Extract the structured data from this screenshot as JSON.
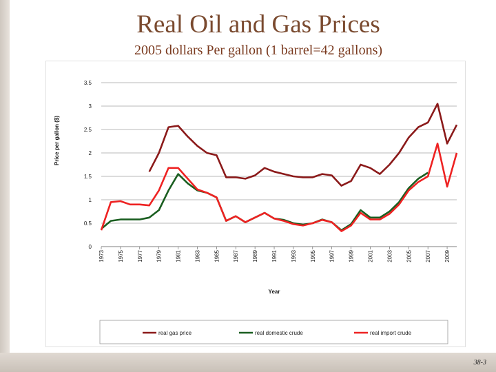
{
  "slide": {
    "title": "Real Oil and Gas Prices",
    "subtitle": "2005 dollars Per gallon (1 barrel=42 gallons)",
    "slide_number": "38-3"
  },
  "colors": {
    "title": "#7a4a2f",
    "gas": "#8b1a1a",
    "domestic": "#1a5e20",
    "import": "#ee2222"
  },
  "chart_data": {
    "type": "line",
    "xlabel": "Year",
    "ylabel": "Price per gallon ($)",
    "ylim": [
      0,
      3.5
    ],
    "yticks": [
      0,
      0.5,
      1,
      1.5,
      2,
      2.5,
      3,
      3.5
    ],
    "ytick_labels": [
      "0",
      "0.5",
      "1",
      "1.5",
      "2",
      "2.5",
      "3",
      "3.5"
    ],
    "xlim": [
      1973,
      2010
    ],
    "xticks": [
      1973,
      1975,
      1977,
      1979,
      1981,
      1983,
      1985,
      1987,
      1989,
      1991,
      1993,
      1995,
      1997,
      1999,
      2001,
      2003,
      2005,
      2007,
      2009
    ],
    "grid": true,
    "legend_position": "bottom",
    "series": [
      {
        "name": "real gas price",
        "color": "#8b1a1a",
        "x": [
          1978,
          1979,
          1980,
          1981,
          1982,
          1983,
          1984,
          1985,
          1986,
          1987,
          1988,
          1989,
          1990,
          1991,
          1992,
          1993,
          1994,
          1995,
          1996,
          1997,
          1998,
          1999,
          2000,
          2001,
          2002,
          2003,
          2004,
          2005,
          2006,
          2007,
          2008,
          2009,
          2010
        ],
        "y": [
          1.6,
          2.0,
          2.55,
          2.58,
          2.35,
          2.15,
          2.0,
          1.95,
          1.48,
          1.48,
          1.45,
          1.52,
          1.68,
          1.6,
          1.55,
          1.5,
          1.48,
          1.48,
          1.55,
          1.52,
          1.3,
          1.4,
          1.75,
          1.68,
          1.55,
          1.75,
          2.0,
          2.33,
          2.55,
          2.65,
          3.05,
          2.2,
          2.6
        ]
      },
      {
        "name": "real domestic crude",
        "color": "#1a5e20",
        "x": [
          1973,
          1974,
          1975,
          1976,
          1977,
          1978,
          1979,
          1980,
          1981,
          1982,
          1983,
          1984,
          1985,
          1986,
          1987,
          1988,
          1989,
          1990,
          1991,
          1992,
          1993,
          1994,
          1995,
          1996,
          1997,
          1998,
          1999,
          2000,
          2001,
          2002,
          2003,
          2004,
          2005,
          2006,
          2007
        ],
        "y": [
          0.38,
          0.55,
          0.58,
          0.58,
          0.58,
          0.62,
          0.78,
          1.2,
          1.55,
          1.35,
          1.2,
          1.15,
          1.05,
          0.55,
          0.65,
          0.52,
          0.62,
          0.72,
          0.6,
          0.57,
          0.5,
          0.47,
          0.5,
          0.58,
          0.52,
          0.35,
          0.48,
          0.78,
          0.62,
          0.62,
          0.75,
          0.95,
          1.25,
          1.45,
          1.58
        ]
      },
      {
        "name": "real import crude",
        "color": "#ee2222",
        "x": [
          1973,
          1974,
          1975,
          1976,
          1977,
          1978,
          1979,
          1980,
          1981,
          1982,
          1983,
          1984,
          1985,
          1986,
          1987,
          1988,
          1989,
          1990,
          1991,
          1992,
          1993,
          1994,
          1995,
          1996,
          1997,
          1998,
          1999,
          2000,
          2001,
          2002,
          2003,
          2004,
          2005,
          2006,
          2007,
          2008,
          2009,
          2010
        ],
        "y": [
          0.35,
          0.95,
          0.97,
          0.9,
          0.9,
          0.88,
          1.2,
          1.68,
          1.68,
          1.45,
          1.22,
          1.15,
          1.05,
          0.55,
          0.65,
          0.52,
          0.62,
          0.72,
          0.6,
          0.55,
          0.48,
          0.45,
          0.5,
          0.57,
          0.52,
          0.33,
          0.45,
          0.72,
          0.58,
          0.58,
          0.7,
          0.9,
          1.2,
          1.38,
          1.5,
          2.2,
          1.28,
          2.0
        ]
      }
    ]
  }
}
